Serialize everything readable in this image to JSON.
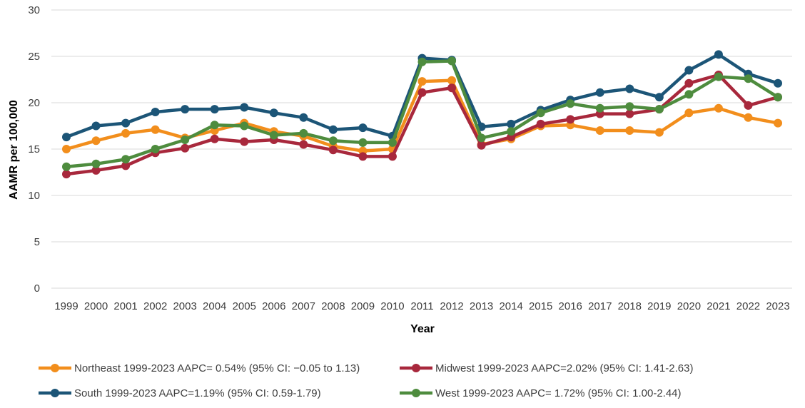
{
  "chart_data": {
    "type": "line",
    "title": "",
    "xlabel": "Year",
    "ylabel": "AAMR per 100,000",
    "ylim": [
      0,
      30
    ],
    "yticks": [
      "0",
      "5",
      "10",
      "15",
      "20",
      "25",
      "30"
    ],
    "grid": "horizontal",
    "legend_position": "bottom",
    "x": [
      "1999",
      "2000",
      "2001",
      "2002",
      "2003",
      "2004",
      "2005",
      "2006",
      "2007",
      "2008",
      "2009",
      "2010",
      "2011",
      "2012",
      "2013",
      "2014",
      "2015",
      "2016",
      "2017",
      "2018",
      "2019",
      "2020",
      "2021",
      "2022",
      "2023"
    ],
    "series": [
      {
        "name": "Northeast 1999-2023 AAPC= 0.54% (95% CI: −0.05 to 1.13)",
        "color": "#F28E1C",
        "values": [
          15.0,
          15.9,
          16.7,
          17.1,
          16.2,
          17.0,
          17.8,
          16.9,
          16.4,
          15.3,
          14.8,
          15.0,
          22.3,
          22.4,
          15.5,
          16.1,
          17.5,
          17.6,
          17.0,
          17.0,
          16.8,
          18.9,
          19.4,
          18.4,
          17.8
        ]
      },
      {
        "name": "Midwest 1999-2023 AAPC=2.02% (95% CI: 1.41-2.63)",
        "color": "#A8283C",
        "values": [
          12.3,
          12.7,
          13.2,
          14.6,
          15.1,
          16.1,
          15.8,
          16.0,
          15.5,
          14.9,
          14.2,
          14.2,
          21.1,
          21.6,
          15.4,
          16.3,
          17.7,
          18.2,
          18.8,
          18.8,
          19.3,
          22.1,
          23.0,
          19.7,
          20.6
        ]
      },
      {
        "name": "South 1999-2023 AAPC=1.19% (95% CI: 0.59-1.79)",
        "color": "#1C5577",
        "values": [
          16.3,
          17.5,
          17.8,
          19.0,
          19.3,
          19.3,
          19.5,
          18.9,
          18.4,
          17.1,
          17.3,
          16.4,
          24.8,
          24.6,
          17.4,
          17.7,
          19.2,
          20.3,
          21.1,
          21.5,
          20.6,
          23.5,
          25.2,
          23.1,
          22.1
        ]
      },
      {
        "name": "West 1999-2023 AAPC= 1.72% (95% CI: 1.00-2.44)",
        "color": "#4E8C3E",
        "values": [
          13.1,
          13.4,
          13.9,
          15.0,
          16.0,
          17.6,
          17.5,
          16.5,
          16.7,
          15.9,
          15.7,
          15.7,
          24.4,
          24.5,
          16.2,
          16.9,
          18.9,
          19.9,
          19.4,
          19.6,
          19.3,
          20.9,
          22.8,
          22.6,
          20.6
        ]
      }
    ]
  }
}
